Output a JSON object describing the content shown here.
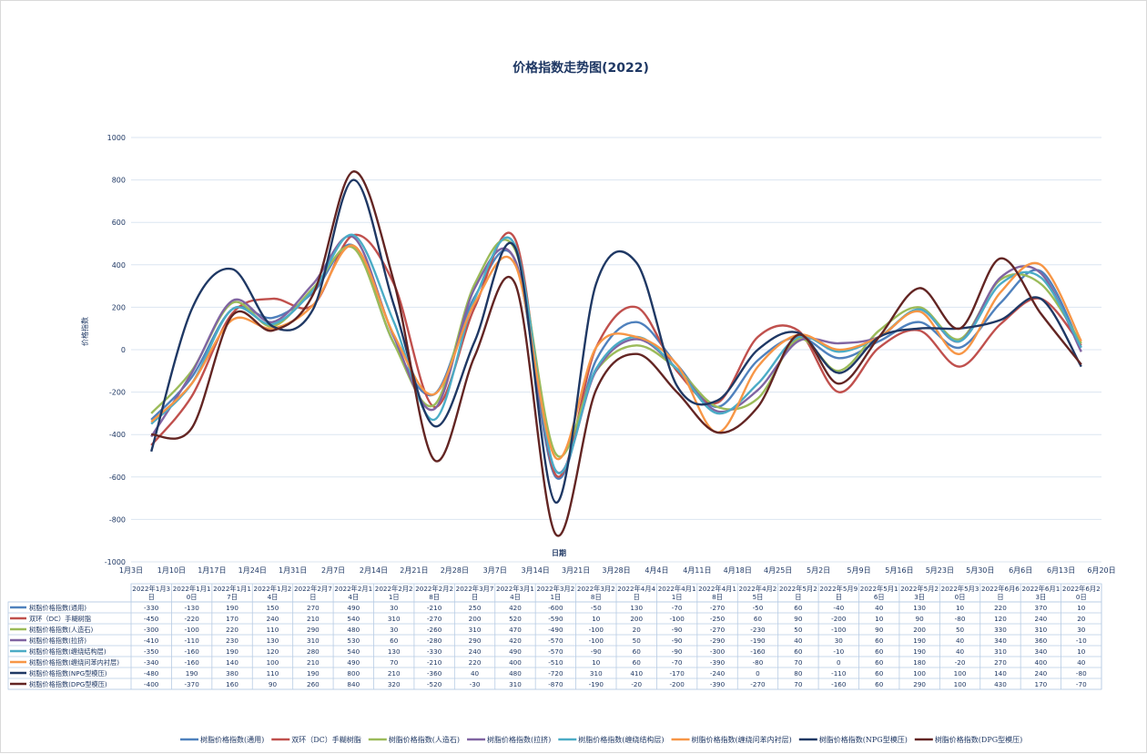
{
  "chart_data": {
    "type": "line",
    "title": "价格指数走势图(2022)",
    "xlabel": "日期",
    "ylabel": "价格指数",
    "ylim": [
      -1000,
      1000
    ],
    "y_ticks": [
      1000,
      800,
      600,
      400,
      200,
      0,
      -200,
      -400,
      -600,
      -800,
      -1000
    ],
    "grid": "horizontal",
    "legend_position": "bottom",
    "x_axis_labels": [
      "1月3日",
      "1月10日",
      "1月17日",
      "1月24日",
      "1月31日",
      "2月7日",
      "2月14日",
      "2月21日",
      "2月28日",
      "3月7日",
      "3月14日",
      "3月21日",
      "3月28日",
      "4月4日",
      "4月11日",
      "4月18日",
      "4月25日",
      "5月2日",
      "5月9日",
      "5月16日",
      "5月23日",
      "5月30日",
      "6月6日",
      "6月13日",
      "6月20日"
    ],
    "table_headers": [
      [
        "2022年1月3",
        "日"
      ],
      [
        "2022年1月1",
        "0日"
      ],
      [
        "2022年1月1",
        "7日"
      ],
      [
        "2022年1月2",
        "4日"
      ],
      [
        "2022年2月7",
        "日"
      ],
      [
        "2022年2月1",
        "4日"
      ],
      [
        "2022年2月2",
        "1日"
      ],
      [
        "2022年2月2",
        "8日"
      ],
      [
        "2022年3月7",
        "日"
      ],
      [
        "2022年3月1",
        "4日"
      ],
      [
        "2022年3月2",
        "1日"
      ],
      [
        "2022年3月2",
        "8日"
      ],
      [
        "2022年4月4",
        "日"
      ],
      [
        "2022年4月1",
        "1日"
      ],
      [
        "2022年4月1",
        "8日"
      ],
      [
        "2022年4月2",
        "5日"
      ],
      [
        "2022年5月2",
        "日"
      ],
      [
        "2022年5月9",
        "日"
      ],
      [
        "2022年5月1",
        "6日"
      ],
      [
        "2022年5月2",
        "3日"
      ],
      [
        "2022年5月3",
        "0日"
      ],
      [
        "2022年6月6",
        "日"
      ],
      [
        "2022年6月1",
        "3日"
      ],
      [
        "2022年6月2",
        "0日"
      ]
    ],
    "series": [
      {
        "name": "树脂价格指数(通用)",
        "color": "#4f81bd",
        "values": [
          -330,
          -130,
          190,
          150,
          270,
          490,
          30,
          -210,
          250,
          420,
          -600,
          -50,
          130,
          -70,
          -270,
          -50,
          60,
          -40,
          40,
          130,
          10,
          220,
          370,
          10
        ]
      },
      {
        "name": "双环（DC）手糊树脂",
        "color": "#c0504d",
        "values": [
          -450,
          -220,
          170,
          240,
          210,
          540,
          310,
          -270,
          200,
          520,
          -590,
          10,
          200,
          -100,
          -250,
          60,
          90,
          -200,
          10,
          90,
          -80,
          120,
          240,
          20
        ]
      },
      {
        "name": "树脂价格指数(人造石)",
        "color": "#9bbb59",
        "values": [
          -300,
          -100,
          220,
          110,
          290,
          480,
          30,
          -260,
          310,
          470,
          -490,
          -100,
          20,
          -90,
          -270,
          -230,
          50,
          -100,
          90,
          200,
          50,
          330,
          310,
          30
        ]
      },
      {
        "name": "树脂价格指数(拉挤)",
        "color": "#8064a2",
        "values": [
          -410,
          -110,
          230,
          130,
          310,
          530,
          60,
          -280,
          290,
          420,
          -570,
          -100,
          50,
          -90,
          -290,
          -190,
          40,
          30,
          60,
          190,
          40,
          340,
          360,
          -10
        ]
      },
      {
        "name": "树脂价格指数(缠绕结构层)",
        "color": "#4bacc6",
        "values": [
          -350,
          -160,
          190,
          120,
          280,
          540,
          130,
          -330,
          240,
          490,
          -570,
          -90,
          60,
          -90,
          -300,
          -160,
          60,
          -10,
          60,
          190,
          40,
          310,
          340,
          10
        ]
      },
      {
        "name": "树脂价格指数(缠绕问苯内衬层)",
        "color": "#f79646",
        "values": [
          -340,
          -160,
          140,
          100,
          210,
          490,
          70,
          -210,
          220,
          400,
          -510,
          10,
          60,
          -70,
          -390,
          -80,
          70,
          0,
          60,
          180,
          -20,
          270,
          400,
          40
        ]
      },
      {
        "name": "树脂价格指数(NPG型模压)",
        "color": "#1f3864",
        "values": [
          -480,
          190,
          380,
          110,
          190,
          800,
          210,
          -360,
          40,
          480,
          -720,
          310,
          410,
          -170,
          -240,
          0,
          80,
          -110,
          60,
          100,
          100,
          140,
          240,
          -80
        ]
      },
      {
        "name": "树脂价格指数(DPG型模压)",
        "color": "#632523",
        "values": [
          -400,
          -370,
          160,
          90,
          260,
          840,
          320,
          -520,
          -30,
          310,
          -870,
          -190,
          -20,
          -200,
          -390,
          -270,
          70,
          -160,
          60,
          290,
          100,
          430,
          170,
          -70
        ]
      }
    ]
  }
}
